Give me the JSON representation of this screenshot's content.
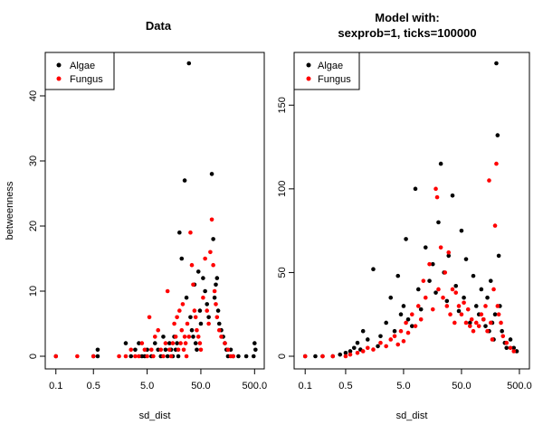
{
  "chart_data": [
    {
      "type": "scatter",
      "title": "Data",
      "subtitle": "",
      "xlabel": "sd_dist",
      "ylabel": "betweenness",
      "x_scale": "log",
      "xlim": [
        0.08,
        600
      ],
      "ylim": [
        0,
        45
      ],
      "x_ticks": [
        "0.1",
        "0.5",
        "5.0",
        "50.0",
        "500.0"
      ],
      "y_ticks": [
        "0",
        "10",
        "20",
        "30",
        "40"
      ],
      "grid": false,
      "legend_position": "top-left",
      "series": [
        {
          "name": "Algae",
          "color": "#000000",
          "points": [
            [
              0.1,
              0
            ],
            [
              0.5,
              0
            ],
            [
              0.6,
              1
            ],
            [
              0.6,
              0
            ],
            [
              2,
              2
            ],
            [
              2.5,
              0
            ],
            [
              3,
              1
            ],
            [
              3.5,
              2
            ],
            [
              4,
              0
            ],
            [
              4.5,
              0
            ],
            [
              5,
              1
            ],
            [
              6,
              0
            ],
            [
              7,
              2
            ],
            [
              8,
              1
            ],
            [
              9,
              0
            ],
            [
              10,
              3
            ],
            [
              11,
              1
            ],
            [
              12,
              0
            ],
            [
              13,
              2
            ],
            [
              14,
              1
            ],
            [
              15,
              0
            ],
            [
              16,
              3
            ],
            [
              17,
              1
            ],
            [
              18,
              2
            ],
            [
              19,
              0
            ],
            [
              20,
              19
            ],
            [
              22,
              15
            ],
            [
              25,
              27
            ],
            [
              27,
              9
            ],
            [
              30,
              45
            ],
            [
              32,
              6
            ],
            [
              34,
              4
            ],
            [
              36,
              3
            ],
            [
              38,
              11
            ],
            [
              40,
              2
            ],
            [
              42,
              1
            ],
            [
              45,
              13
            ],
            [
              48,
              7
            ],
            [
              50,
              5
            ],
            [
              55,
              12
            ],
            [
              60,
              10
            ],
            [
              65,
              8
            ],
            [
              70,
              6
            ],
            [
              80,
              28
            ],
            [
              85,
              18
            ],
            [
              90,
              9
            ],
            [
              95,
              11
            ],
            [
              100,
              12
            ],
            [
              105,
              7
            ],
            [
              110,
              5
            ],
            [
              120,
              4
            ],
            [
              130,
              3
            ],
            [
              140,
              2
            ],
            [
              150,
              1
            ],
            [
              160,
              0
            ],
            [
              180,
              1
            ],
            [
              200,
              0
            ],
            [
              250,
              0
            ],
            [
              350,
              0
            ],
            [
              500,
              2
            ],
            [
              480,
              0
            ],
            [
              520,
              1
            ]
          ]
        },
        {
          "name": "Fungus",
          "color": "#ff0000",
          "points": [
            [
              0.1,
              0
            ],
            [
              0.25,
              0
            ],
            [
              0.5,
              0
            ],
            [
              1.5,
              0
            ],
            [
              2,
              0
            ],
            [
              2.5,
              1
            ],
            [
              3,
              0
            ],
            [
              3.5,
              0
            ],
            [
              4,
              2
            ],
            [
              4.5,
              1
            ],
            [
              5,
              0
            ],
            [
              5.5,
              6
            ],
            [
              6,
              1
            ],
            [
              6.5,
              0
            ],
            [
              7,
              3
            ],
            [
              8,
              4
            ],
            [
              9,
              1
            ],
            [
              10,
              0
            ],
            [
              11,
              2
            ],
            [
              12,
              10
            ],
            [
              13,
              1
            ],
            [
              14,
              0
            ],
            [
              15,
              2
            ],
            [
              16,
              5
            ],
            [
              17,
              3
            ],
            [
              18,
              6
            ],
            [
              19,
              1
            ],
            [
              20,
              7
            ],
            [
              21,
              2
            ],
            [
              22,
              4
            ],
            [
              23,
              8
            ],
            [
              24,
              1
            ],
            [
              25,
              3
            ],
            [
              26,
              2
            ],
            [
              27,
              0
            ],
            [
              28,
              5
            ],
            [
              30,
              3
            ],
            [
              32,
              19
            ],
            [
              34,
              14
            ],
            [
              36,
              11
            ],
            [
              38,
              7
            ],
            [
              40,
              6
            ],
            [
              42,
              4
            ],
            [
              45,
              3
            ],
            [
              48,
              2
            ],
            [
              50,
              1
            ],
            [
              55,
              9
            ],
            [
              60,
              15
            ],
            [
              65,
              7
            ],
            [
              70,
              5
            ],
            [
              75,
              16
            ],
            [
              80,
              21
            ],
            [
              85,
              14
            ],
            [
              90,
              10
            ],
            [
              95,
              8
            ],
            [
              100,
              6
            ],
            [
              110,
              4
            ],
            [
              120,
              3
            ],
            [
              140,
              2
            ],
            [
              160,
              1
            ],
            [
              180,
              0
            ],
            [
              200,
              0
            ]
          ]
        }
      ]
    },
    {
      "type": "scatter",
      "title": "Model with:",
      "subtitle": "sexprob=1, ticks=100000",
      "xlabel": "sd_dist",
      "ylabel": "",
      "x_scale": "log",
      "xlim": [
        0.08,
        600
      ],
      "ylim": [
        0,
        175
      ],
      "x_ticks": [
        "0.1",
        "0.5",
        "5.0",
        "50.0",
        "500.0"
      ],
      "y_ticks": [
        "0",
        "50",
        "100",
        "150"
      ],
      "grid": false,
      "legend_position": "top-left",
      "series": [
        {
          "name": "Algae",
          "color": "#000000",
          "points": [
            [
              0.1,
              0
            ],
            [
              0.15,
              0
            ],
            [
              0.2,
              0
            ],
            [
              0.3,
              0
            ],
            [
              0.4,
              1
            ],
            [
              0.5,
              2
            ],
            [
              0.6,
              3
            ],
            [
              0.7,
              5
            ],
            [
              0.8,
              8
            ],
            [
              0.9,
              4
            ],
            [
              1.0,
              15
            ],
            [
              1.2,
              10
            ],
            [
              1.5,
              52
            ],
            [
              1.8,
              6
            ],
            [
              2,
              12
            ],
            [
              2.5,
              20
            ],
            [
              3,
              35
            ],
            [
              3.5,
              15
            ],
            [
              4,
              48
            ],
            [
              4.5,
              25
            ],
            [
              5,
              30
            ],
            [
              5.5,
              70
            ],
            [
              6,
              22
            ],
            [
              7,
              18
            ],
            [
              8,
              100
            ],
            [
              9,
              40
            ],
            [
              10,
              28
            ],
            [
              12,
              65
            ],
            [
              14,
              45
            ],
            [
              16,
              55
            ],
            [
              18,
              38
            ],
            [
              20,
              80
            ],
            [
              22,
              115
            ],
            [
              25,
              50
            ],
            [
              28,
              33
            ],
            [
              30,
              60
            ],
            [
              35,
              96
            ],
            [
              40,
              42
            ],
            [
              45,
              27
            ],
            [
              50,
              75
            ],
            [
              55,
              35
            ],
            [
              60,
              58
            ],
            [
              70,
              20
            ],
            [
              80,
              48
            ],
            [
              90,
              30
            ],
            [
              100,
              25
            ],
            [
              110,
              40
            ],
            [
              120,
              22
            ],
            [
              130,
              18
            ],
            [
              140,
              35
            ],
            [
              150,
              15
            ],
            [
              160,
              45
            ],
            [
              170,
              20
            ],
            [
              180,
              10
            ],
            [
              190,
              25
            ],
            [
              200,
              175
            ],
            [
              210,
              132
            ],
            [
              220,
              60
            ],
            [
              230,
              30
            ],
            [
              250,
              15
            ],
            [
              280,
              8
            ],
            [
              300,
              5
            ],
            [
              350,
              10
            ],
            [
              400,
              5
            ],
            [
              450,
              3
            ]
          ]
        },
        {
          "name": "Fungus",
          "color": "#ff0000",
          "points": [
            [
              0.1,
              0
            ],
            [
              0.2,
              0
            ],
            [
              0.3,
              0
            ],
            [
              0.5,
              0
            ],
            [
              0.6,
              1
            ],
            [
              0.8,
              2
            ],
            [
              1.0,
              3
            ],
            [
              1.2,
              5
            ],
            [
              1.5,
              4
            ],
            [
              2,
              8
            ],
            [
              2.5,
              6
            ],
            [
              3,
              10
            ],
            [
              3.5,
              12
            ],
            [
              4,
              7
            ],
            [
              4.5,
              15
            ],
            [
              5,
              9
            ],
            [
              5.5,
              20
            ],
            [
              6,
              14
            ],
            [
              7,
              25
            ],
            [
              8,
              18
            ],
            [
              9,
              30
            ],
            [
              10,
              22
            ],
            [
              11,
              45
            ],
            [
              12,
              35
            ],
            [
              14,
              55
            ],
            [
              16,
              28
            ],
            [
              18,
              100
            ],
            [
              19,
              95
            ],
            [
              20,
              40
            ],
            [
              22,
              65
            ],
            [
              24,
              35
            ],
            [
              26,
              50
            ],
            [
              28,
              30
            ],
            [
              30,
              62
            ],
            [
              32,
              25
            ],
            [
              35,
              40
            ],
            [
              38,
              20
            ],
            [
              40,
              38
            ],
            [
              45,
              30
            ],
            [
              50,
              25
            ],
            [
              55,
              32
            ],
            [
              60,
              20
            ],
            [
              65,
              28
            ],
            [
              70,
              18
            ],
            [
              75,
              22
            ],
            [
              80,
              15
            ],
            [
              90,
              20
            ],
            [
              100,
              18
            ],
            [
              110,
              25
            ],
            [
              120,
              22
            ],
            [
              130,
              30
            ],
            [
              140,
              15
            ],
            [
              150,
              105
            ],
            [
              160,
              20
            ],
            [
              170,
              10
            ],
            [
              180,
              40
            ],
            [
              190,
              78
            ],
            [
              200,
              115
            ],
            [
              210,
              30
            ],
            [
              220,
              25
            ],
            [
              240,
              20
            ],
            [
              260,
              12
            ],
            [
              300,
              8
            ],
            [
              350,
              5
            ],
            [
              400,
              3
            ]
          ]
        }
      ]
    }
  ]
}
